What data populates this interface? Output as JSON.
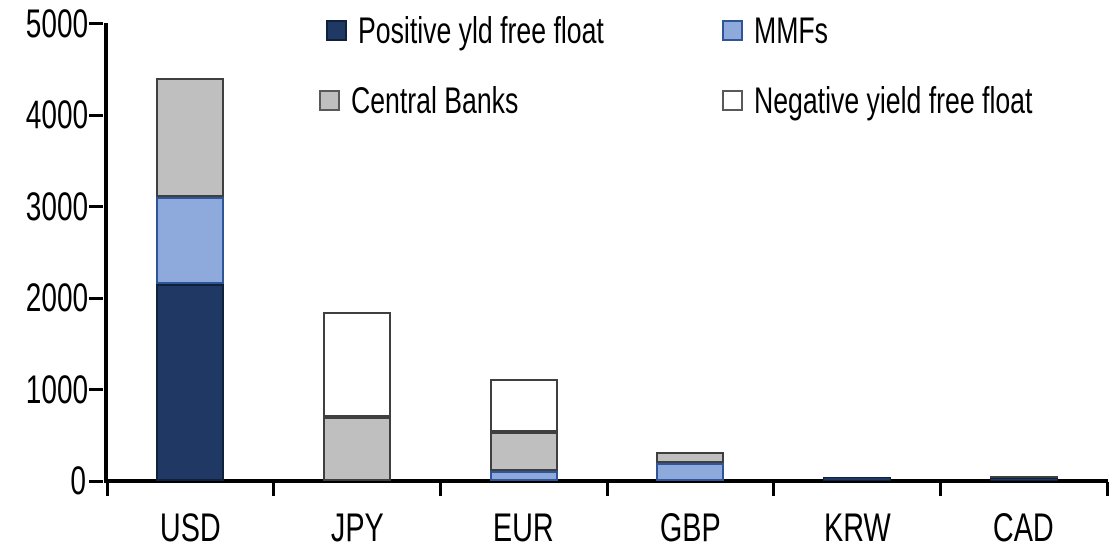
{
  "chart_data": {
    "type": "bar",
    "stacked": true,
    "title": "",
    "xlabel": "",
    "ylabel": "",
    "categories": [
      "USD",
      "JPY",
      "EUR",
      "GBP",
      "KRW",
      "CAD"
    ],
    "series": [
      {
        "name": "Positive yld free float",
        "color": "#1F3864",
        "border_color": "#10213C",
        "values": [
          2150,
          0,
          0,
          0,
          40,
          35
        ]
      },
      {
        "name": "MMFs",
        "color": "#8EA9DB",
        "border_color": "#2F5597",
        "values": [
          950,
          0,
          110,
          200,
          0,
          0
        ]
      },
      {
        "name": "Central Banks",
        "color": "#BFBFBF",
        "border_color": "#3F3F3F",
        "values": [
          1300,
          700,
          430,
          120,
          0,
          25
        ]
      },
      {
        "name": "Negative yield free float",
        "color": "#FFFFFF",
        "border_color": "#3F3F3F",
        "values": [
          0,
          1150,
          580,
          0,
          0,
          0
        ]
      }
    ],
    "totals_by_category": [
      4400,
      1850,
      1120,
      320,
      40,
      60
    ],
    "ylim": [
      0,
      5000
    ],
    "yticks": [
      0,
      1000,
      2000,
      3000,
      4000,
      5000
    ],
    "grid": false,
    "legend_position": "top",
    "legend_rows": [
      [
        "Positive yld free float",
        "MMFs"
      ],
      [
        "Central Banks",
        "Negative yield free float"
      ]
    ],
    "axis_color": "#000000",
    "background_color": "#FFFFFF"
  }
}
